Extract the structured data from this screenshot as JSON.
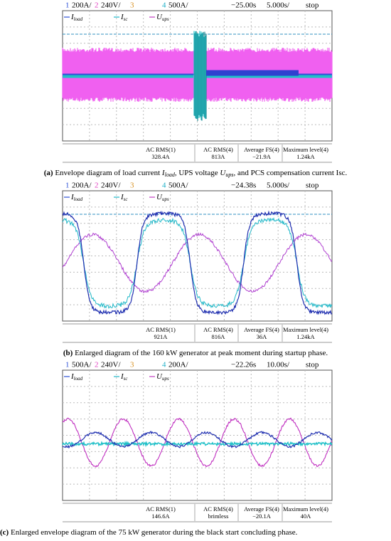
{
  "panels": [
    {
      "header": {
        "channels": [
          {
            "n": "1",
            "scale": "200A/"
          },
          {
            "n": "2",
            "scale": "240V/"
          },
          {
            "n": "3"
          },
          {
            "n": "4",
            "scale": "500A/"
          }
        ],
        "delay": "−25.00s",
        "timebase": "5.000s/",
        "status": "stop"
      },
      "legend": [
        {
          "sym": "I",
          "sub": "load"
        },
        {
          "sym": "I",
          "sub": "sc"
        },
        {
          "sym": "U",
          "sub": "ups"
        }
      ],
      "measurements": [
        {
          "label": "AC RMS(1)",
          "value": "328.4A"
        },
        {
          "label": "AC RMS(4)",
          "value": "813A"
        },
        {
          "label": "Average FS(4)",
          "value": "−21.9A"
        },
        {
          "label": "Maximum level(4)",
          "value": "1.24kA"
        }
      ],
      "caption": [
        {
          "t": "(a)",
          "s": "b"
        },
        {
          "t": " Envelope diagram of load current "
        },
        {
          "t": "I",
          "s": "i"
        },
        {
          "t": "load",
          "s": "sub"
        },
        {
          "t": ", UPS voltage "
        },
        {
          "t": "U",
          "s": "i"
        },
        {
          "t": "ups",
          "s": "sub"
        },
        {
          "t": ", and PCS compensation current Isc."
        }
      ]
    },
    {
      "header": {
        "channels": [
          {
            "n": "1",
            "scale": "200A/"
          },
          {
            "n": "2",
            "scale": "240V/"
          },
          {
            "n": "3"
          },
          {
            "n": "4",
            "scale": "500A/"
          }
        ],
        "delay": "−24.38s",
        "timebase": "5.000s/",
        "status": "stop"
      },
      "legend": [
        {
          "sym": "I",
          "sub": "load"
        },
        {
          "sym": "I",
          "sub": "sc"
        },
        {
          "sym": "U",
          "sub": "ups"
        }
      ],
      "measurements": [
        {
          "label": "AC RMS(1)",
          "value": "921A"
        },
        {
          "label": "AC RMS(4)",
          "value": "816A"
        },
        {
          "label": "Average FS(4)",
          "value": "36A"
        },
        {
          "label": "Maximum level(4)",
          "value": "1.24kA"
        }
      ],
      "caption": [
        {
          "t": "(b)",
          "s": "b"
        },
        {
          "t": " Enlarged diagram of the 160 kW generator at peak moment during startup phase."
        }
      ]
    },
    {
      "header": {
        "channels": [
          {
            "n": "1",
            "scale": "500A/"
          },
          {
            "n": "2",
            "scale": "240V/"
          },
          {
            "n": "3"
          },
          {
            "n": "4",
            "scale": "200A/"
          }
        ],
        "delay": "−22.26s",
        "timebase": "10.00s/",
        "status": "stop"
      },
      "legend": [
        {
          "sym": "I",
          "sub": "load"
        },
        {
          "sym": "I",
          "sub": "sc"
        },
        {
          "sym": "U",
          "sub": "ups"
        }
      ],
      "measurements": [
        {
          "label": "AC RMS(1)",
          "value": "146.6A"
        },
        {
          "label": "AC RMS(4)",
          "value": "brimless"
        },
        {
          "label": "Average FS(4)",
          "value": "−20.1A"
        },
        {
          "label": "Maximum level(4)",
          "value": "40A"
        }
      ],
      "caption": [
        {
          "t": "(c)",
          "s": "b"
        },
        {
          "t": " Enlarged envelope diagram of the 75 kW generator during the black start concluding phase."
        }
      ]
    }
  ]
}
